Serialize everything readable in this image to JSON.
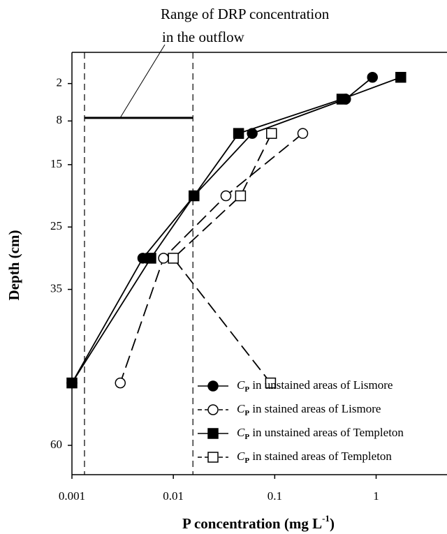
{
  "chart_data": {
    "type": "line",
    "x_label": "P concentration (mg L-1)",
    "y_label": "Depth (cm)",
    "annotation": [
      "Range of DRP concentration",
      "in the outflow"
    ],
    "drp_range": {
      "x": [
        0.00133,
        0.0156
      ],
      "depth": 7.5
    },
    "xlim": [
      0.001,
      5
    ],
    "log_x": true,
    "xticks": [
      0.001,
      0.01,
      0.1,
      1
    ],
    "ylim": [
      -3,
      64.7
    ],
    "y_inverted": true,
    "yticks": [
      2,
      8,
      15,
      25,
      35,
      60
    ],
    "legend": "lower right",
    "series": [
      {
        "name": "CP in unstained areas of Lismore",
        "color": "#000000",
        "marker": "circle",
        "filled": true,
        "dashed": false,
        "x": [
          0.92,
          0.5,
          0.06,
          0.016,
          0.005,
          0.001
        ],
        "y": [
          1,
          4.5,
          10,
          20,
          30,
          50
        ]
      },
      {
        "name": "CP in stained areas of Lismore",
        "color": "#000000",
        "marker": "circle",
        "filled": false,
        "dashed": true,
        "x": [
          0.189,
          0.033,
          0.008,
          0.003
        ],
        "y": [
          10,
          20,
          30,
          50
        ]
      },
      {
        "name": "CP in unstained areas of Templeton",
        "color": "#000000",
        "marker": "square",
        "filled": true,
        "dashed": false,
        "x": [
          1.75,
          0.46,
          0.044,
          0.016,
          0.006,
          0.001
        ],
        "y": [
          1,
          4.5,
          10,
          20,
          30,
          50
        ]
      },
      {
        "name": "CP in stained areas of Templeton",
        "color": "#000000",
        "marker": "square",
        "filled": false,
        "dashed": true,
        "x": [
          0.093,
          0.046,
          0.01,
          0.091
        ],
        "y": [
          10,
          20,
          30,
          50
        ]
      }
    ]
  }
}
